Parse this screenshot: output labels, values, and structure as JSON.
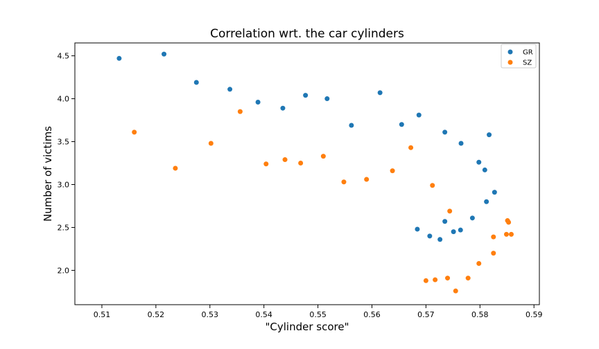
{
  "chart_data": {
    "type": "scatter",
    "title": "Correlation wrt. the car cylinders",
    "xlabel": "\"Cylinder score\"",
    "ylabel": "Number of victims",
    "xlim": [
      0.505,
      0.591
    ],
    "ylim": [
      1.6,
      4.65
    ],
    "x_ticks": [
      0.51,
      0.52,
      0.53,
      0.54,
      0.55,
      0.56,
      0.57,
      0.58,
      0.59
    ],
    "y_ticks": [
      2.0,
      2.5,
      3.0,
      3.5,
      4.0,
      4.5
    ],
    "grid": false,
    "legend_position": "top-right",
    "series": [
      {
        "name": "GR",
        "color": "#1f77b4",
        "points": [
          [
            0.5132,
            4.47
          ],
          [
            0.5215,
            4.52
          ],
          [
            0.5275,
            4.19
          ],
          [
            0.5337,
            4.11
          ],
          [
            0.5389,
            3.96
          ],
          [
            0.5435,
            3.89
          ],
          [
            0.5477,
            4.04
          ],
          [
            0.5517,
            4.0
          ],
          [
            0.5562,
            3.69
          ],
          [
            0.5615,
            4.07
          ],
          [
            0.5655,
            3.7
          ],
          [
            0.5687,
            3.81
          ],
          [
            0.5735,
            3.61
          ],
          [
            0.5765,
            3.48
          ],
          [
            0.5817,
            3.58
          ],
          [
            0.5798,
            3.26
          ],
          [
            0.5809,
            3.17
          ],
          [
            0.5827,
            2.91
          ],
          [
            0.5812,
            2.8
          ],
          [
            0.5786,
            2.61
          ],
          [
            0.5764,
            2.47
          ],
          [
            0.5751,
            2.45
          ],
          [
            0.5735,
            2.57
          ],
          [
            0.5726,
            2.36
          ],
          [
            0.5707,
            2.4
          ],
          [
            0.5684,
            2.48
          ]
        ]
      },
      {
        "name": "SZ",
        "color": "#ff7f0e",
        "points": [
          [
            0.516,
            3.61
          ],
          [
            0.5236,
            3.19
          ],
          [
            0.5302,
            3.48
          ],
          [
            0.5356,
            3.85
          ],
          [
            0.5404,
            3.24
          ],
          [
            0.5439,
            3.29
          ],
          [
            0.5468,
            3.25
          ],
          [
            0.551,
            3.33
          ],
          [
            0.5548,
            3.03
          ],
          [
            0.559,
            3.06
          ],
          [
            0.5638,
            3.16
          ],
          [
            0.5672,
            3.43
          ],
          [
            0.5712,
            2.99
          ],
          [
            0.5744,
            2.69
          ],
          [
            0.57,
            1.88
          ],
          [
            0.5717,
            1.89
          ],
          [
            0.574,
            1.91
          ],
          [
            0.5755,
            1.76
          ],
          [
            0.5778,
            1.91
          ],
          [
            0.5798,
            2.08
          ],
          [
            0.5825,
            2.2
          ],
          [
            0.5825,
            2.39
          ],
          [
            0.5849,
            2.42
          ],
          [
            0.5851,
            2.58
          ],
          [
            0.5853,
            2.56
          ],
          [
            0.5858,
            2.42
          ]
        ]
      }
    ]
  }
}
